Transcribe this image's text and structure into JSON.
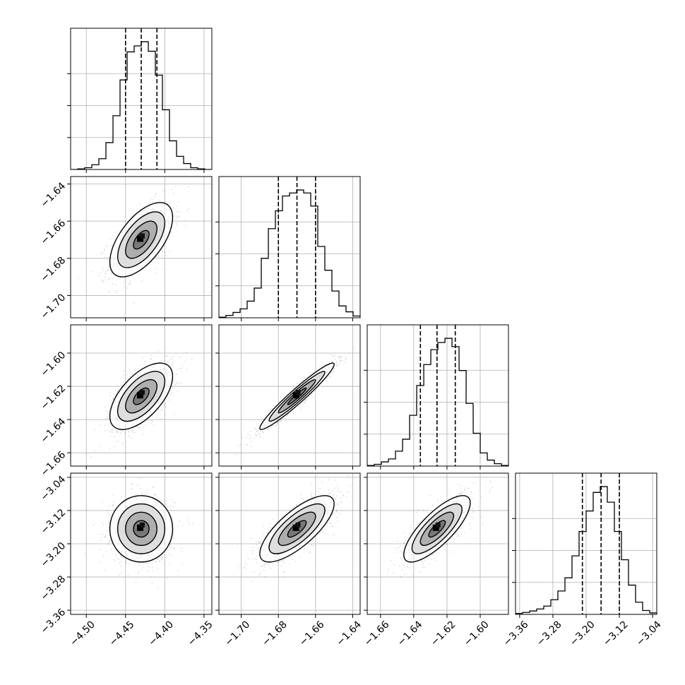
{
  "chart_data": {
    "type": "corner",
    "n_params": 4,
    "grid": true,
    "params": [
      {
        "range": [
          -4.52,
          -4.34
        ],
        "ticks": [
          -4.5,
          -4.45,
          -4.4,
          -4.35
        ],
        "tick_labels": [
          "−4.50",
          "−4.45",
          "−4.40",
          "−4.35"
        ],
        "mean": -4.43,
        "sigma": 0.02,
        "quantiles": [
          -4.45,
          -4.43,
          -4.41
        ],
        "hist_bins": [
          [
            -4.52,
            0
          ],
          [
            -4.511,
            1
          ],
          [
            -4.502,
            3
          ],
          [
            -4.493,
            8
          ],
          [
            -4.484,
            18
          ],
          [
            -4.475,
            45
          ],
          [
            -4.466,
            90
          ],
          [
            -4.457,
            150
          ],
          [
            -4.448,
            197
          ],
          [
            -4.439,
            207
          ],
          [
            -4.43,
            214
          ],
          [
            -4.421,
            198
          ],
          [
            -4.412,
            158
          ],
          [
            -4.403,
            100
          ],
          [
            -4.394,
            48
          ],
          [
            -4.385,
            22
          ],
          [
            -4.376,
            10
          ],
          [
            -4.367,
            3
          ],
          [
            -4.358,
            1
          ],
          [
            -4.349,
            0
          ]
        ]
      },
      {
        "range": [
          -1.712,
          -1.636
        ],
        "ticks": [
          -1.7,
          -1.68,
          -1.66,
          -1.64
        ],
        "tick_labels": [
          "−1.70",
          "−1.68",
          "−1.66",
          "−1.64"
        ],
        "mean": -1.67,
        "sigma": 0.01,
        "quantiles": [
          -1.68,
          -1.67,
          -1.66
        ],
        "hist_bins": [
          [
            -1.712,
            1
          ],
          [
            -1.7082,
            4
          ],
          [
            -1.7044,
            9
          ],
          [
            -1.7006,
            15
          ],
          [
            -1.6968,
            28
          ],
          [
            -1.693,
            50
          ],
          [
            -1.6892,
            100
          ],
          [
            -1.6854,
            150
          ],
          [
            -1.6816,
            180
          ],
          [
            -1.6778,
            205
          ],
          [
            -1.674,
            210
          ],
          [
            -1.6702,
            215
          ],
          [
            -1.6664,
            210
          ],
          [
            -1.6626,
            188
          ],
          [
            -1.6588,
            120
          ],
          [
            -1.655,
            80
          ],
          [
            -1.6512,
            45
          ],
          [
            -1.6474,
            20
          ],
          [
            -1.6436,
            10
          ],
          [
            -1.6398,
            3
          ]
        ]
      },
      {
        "range": [
          -1.668,
          -1.583
        ],
        "ticks": [
          -1.66,
          -1.64,
          -1.62,
          -1.6
        ],
        "tick_labels": [
          "−1.66",
          "−1.64",
          "−1.62",
          "−1.60"
        ],
        "mean": -1.626,
        "sigma": 0.01,
        "quantiles": [
          -1.636,
          -1.626,
          -1.615
        ],
        "hist_bins": [
          [
            -1.668,
            1
          ],
          [
            -1.6637,
            3
          ],
          [
            -1.6595,
            7
          ],
          [
            -1.6552,
            12
          ],
          [
            -1.651,
            25
          ],
          [
            -1.6467,
            45
          ],
          [
            -1.6425,
            85
          ],
          [
            -1.6382,
            135
          ],
          [
            -1.634,
            170
          ],
          [
            -1.6297,
            195
          ],
          [
            -1.6255,
            207
          ],
          [
            -1.6212,
            214
          ],
          [
            -1.617,
            200
          ],
          [
            -1.6127,
            160
          ],
          [
            -1.6085,
            105
          ],
          [
            -1.6042,
            55
          ],
          [
            -1.6,
            22
          ],
          [
            -1.5957,
            10
          ],
          [
            -1.5915,
            4
          ],
          [
            -1.5872,
            1
          ]
        ]
      },
      {
        "range": [
          -3.37,
          -3.03
        ],
        "ticks": [
          -3.36,
          -3.28,
          -3.2,
          -3.12,
          -3.04
        ],
        "tick_labels": [
          "−3.36",
          "−3.28",
          "−3.20",
          "−3.12",
          "−3.04"
        ],
        "mean": -3.164,
        "sigma": 0.04,
        "quantiles": [
          -3.209,
          -3.164,
          -3.12
        ],
        "hist_bins": [
          [
            -3.37,
            2
          ],
          [
            -3.353,
            4
          ],
          [
            -3.336,
            7
          ],
          [
            -3.319,
            11
          ],
          [
            -3.302,
            17
          ],
          [
            -3.285,
            30
          ],
          [
            -3.268,
            48
          ],
          [
            -3.251,
            75
          ],
          [
            -3.234,
            120
          ],
          [
            -3.217,
            170
          ],
          [
            -3.2,
            212
          ],
          [
            -3.183,
            250
          ],
          [
            -3.166,
            262
          ],
          [
            -3.149,
            230
          ],
          [
            -3.132,
            170
          ],
          [
            -3.115,
            112
          ],
          [
            -3.098,
            60
          ],
          [
            -3.081,
            25
          ],
          [
            -3.064,
            8
          ],
          [
            -3.047,
            3
          ]
        ]
      }
    ],
    "correlations": [
      [
        1.0,
        0.6,
        0.6,
        0.0
      ],
      [
        0.6,
        1.0,
        0.96,
        0.75
      ],
      [
        0.6,
        0.96,
        1.0,
        0.78
      ],
      [
        0.0,
        0.75,
        0.78,
        1.0
      ]
    ],
    "contour_levels_sigma": [
      0.5,
      1.0,
      1.5,
      2.0
    ],
    "colors": {
      "line": "#000000",
      "grid": "#b0b0b0",
      "scatter": "#8c8c8c"
    }
  }
}
